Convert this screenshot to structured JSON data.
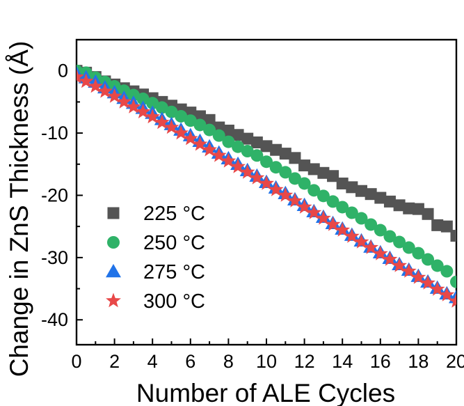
{
  "chart_data": {
    "type": "scatter",
    "xlabel": "Number of ALE Cycles",
    "ylabel": "Change in ZnS Thickness (Å)",
    "xlim": [
      0,
      20
    ],
    "ylim": [
      -44,
      5
    ],
    "xticks": [
      0,
      2,
      4,
      6,
      8,
      10,
      12,
      14,
      16,
      18,
      20
    ],
    "xtick_labels": [
      "0",
      "2",
      "4",
      "6",
      "8",
      "10",
      "12",
      "14",
      "16",
      "18",
      "20"
    ],
    "yticks": [
      0,
      -10,
      -20,
      -30,
      -40
    ],
    "ytick_labels": [
      "0",
      "-10",
      "-20",
      "-30",
      "-40"
    ],
    "legend_position": "bottom-left",
    "grid": false,
    "series": [
      {
        "name": "225 °C",
        "marker": "square",
        "color": "#545454",
        "x": [
          0,
          0.5,
          1,
          1.5,
          2,
          2.5,
          3,
          3.5,
          4,
          4.5,
          5,
          5.5,
          6,
          6.5,
          7,
          7.5,
          8,
          8.5,
          9,
          9.5,
          10,
          10.5,
          11,
          11.5,
          12,
          12.5,
          13,
          13.5,
          14,
          14.5,
          15,
          15.5,
          16,
          16.5,
          17,
          17.5,
          18,
          18.5,
          19,
          19.5,
          20
        ],
        "values": [
          0,
          -0.3,
          -1,
          -1.7,
          -2.2,
          -2.8,
          -3.3,
          -3.8,
          -4.4,
          -5,
          -5.6,
          -6.2,
          -6.7,
          -7.3,
          -7.9,
          -9.1,
          -9.6,
          -10.3,
          -10.9,
          -11.5,
          -12.1,
          -12.7,
          -13.3,
          -14,
          -15.2,
          -15.8,
          -16.4,
          -16.9,
          -18.1,
          -18.7,
          -19.3,
          -19.8,
          -20.4,
          -21,
          -21.6,
          -22.1,
          -22.2,
          -23,
          -24.8,
          -25,
          -26.5
        ]
      },
      {
        "name": "250 °C",
        "marker": "circle",
        "color": "#2fb268",
        "x": [
          0,
          0.5,
          1,
          1.5,
          2,
          2.5,
          3,
          3.5,
          4,
          4.5,
          5,
          5.5,
          6,
          6.5,
          7,
          7.5,
          8,
          8.5,
          9,
          9.5,
          10,
          10.5,
          11,
          11.5,
          12,
          12.5,
          13,
          13.5,
          14,
          14.5,
          15,
          15.5,
          16,
          16.5,
          17,
          17.5,
          18,
          18.5,
          19,
          19.5,
          20
        ],
        "values": [
          0,
          -0.3,
          -1.1,
          -1.8,
          -2.5,
          -3.2,
          -3.9,
          -4.5,
          -5.2,
          -5.9,
          -6.6,
          -7.3,
          -8,
          -8.7,
          -9.5,
          -10.4,
          -11.4,
          -12.2,
          -12.9,
          -13.6,
          -14.6,
          -15.5,
          -16.3,
          -17.3,
          -18.1,
          -19.2,
          -20.1,
          -21,
          -21.9,
          -22.8,
          -23.7,
          -24.7,
          -25.6,
          -26.6,
          -27.5,
          -28.4,
          -29.3,
          -30.3,
          -31.3,
          -32.2,
          -33.9
        ]
      },
      {
        "name": "275 °C",
        "marker": "triangle",
        "color": "#2173e8",
        "x": [
          0,
          0.5,
          1,
          1.5,
          2,
          2.5,
          3,
          3.5,
          4,
          4.5,
          5,
          5.5,
          6,
          6.5,
          7,
          7.5,
          8,
          8.5,
          9,
          9.5,
          10,
          10.5,
          11,
          11.5,
          12,
          12.5,
          13,
          13.5,
          14,
          14.5,
          15,
          15.5,
          16,
          16.5,
          17,
          17.5,
          18,
          18.5,
          19,
          19.5,
          20
        ],
        "values": [
          -0.5,
          -1.1,
          -1.8,
          -2.7,
          -3.5,
          -4.4,
          -5.2,
          -6,
          -6.8,
          -7.8,
          -8.6,
          -9.5,
          -10.4,
          -11.3,
          -12.2,
          -13.2,
          -14.1,
          -15,
          -16,
          -16.9,
          -17.9,
          -18.8,
          -19.7,
          -20.7,
          -21.6,
          -22.6,
          -23.5,
          -24.5,
          -25.4,
          -26.4,
          -27.3,
          -28.3,
          -29.2,
          -30.1,
          -31.1,
          -32,
          -33,
          -33.9,
          -34.9,
          -35.8,
          -36.4
        ]
      },
      {
        "name": "300 °C",
        "marker": "star",
        "color": "#e84848",
        "x": [
          0,
          0.5,
          1,
          1.5,
          2,
          2.5,
          3,
          3.5,
          4,
          4.5,
          5,
          5.5,
          6,
          6.5,
          7,
          7.5,
          8,
          8.5,
          9,
          9.5,
          10,
          10.5,
          11,
          11.5,
          12,
          12.5,
          13,
          13.5,
          14,
          14.5,
          15,
          15.5,
          16,
          16.5,
          17,
          17.5,
          18,
          18.5,
          19,
          19.5,
          20
        ],
        "values": [
          -1,
          -1.7,
          -2.5,
          -3.3,
          -4.1,
          -5,
          -5.8,
          -6.6,
          -7.4,
          -8.3,
          -9.1,
          -10,
          -10.9,
          -11.8,
          -12.7,
          -13.6,
          -14.5,
          -15.4,
          -16.3,
          -17.2,
          -18.1,
          -19.1,
          -20,
          -20.9,
          -21.9,
          -22.8,
          -23.7,
          -24.7,
          -25.6,
          -26.6,
          -27.5,
          -28.4,
          -29.4,
          -30.3,
          -31.3,
          -32.2,
          -33.2,
          -34.1,
          -35.1,
          -36,
          -37
        ]
      }
    ]
  }
}
